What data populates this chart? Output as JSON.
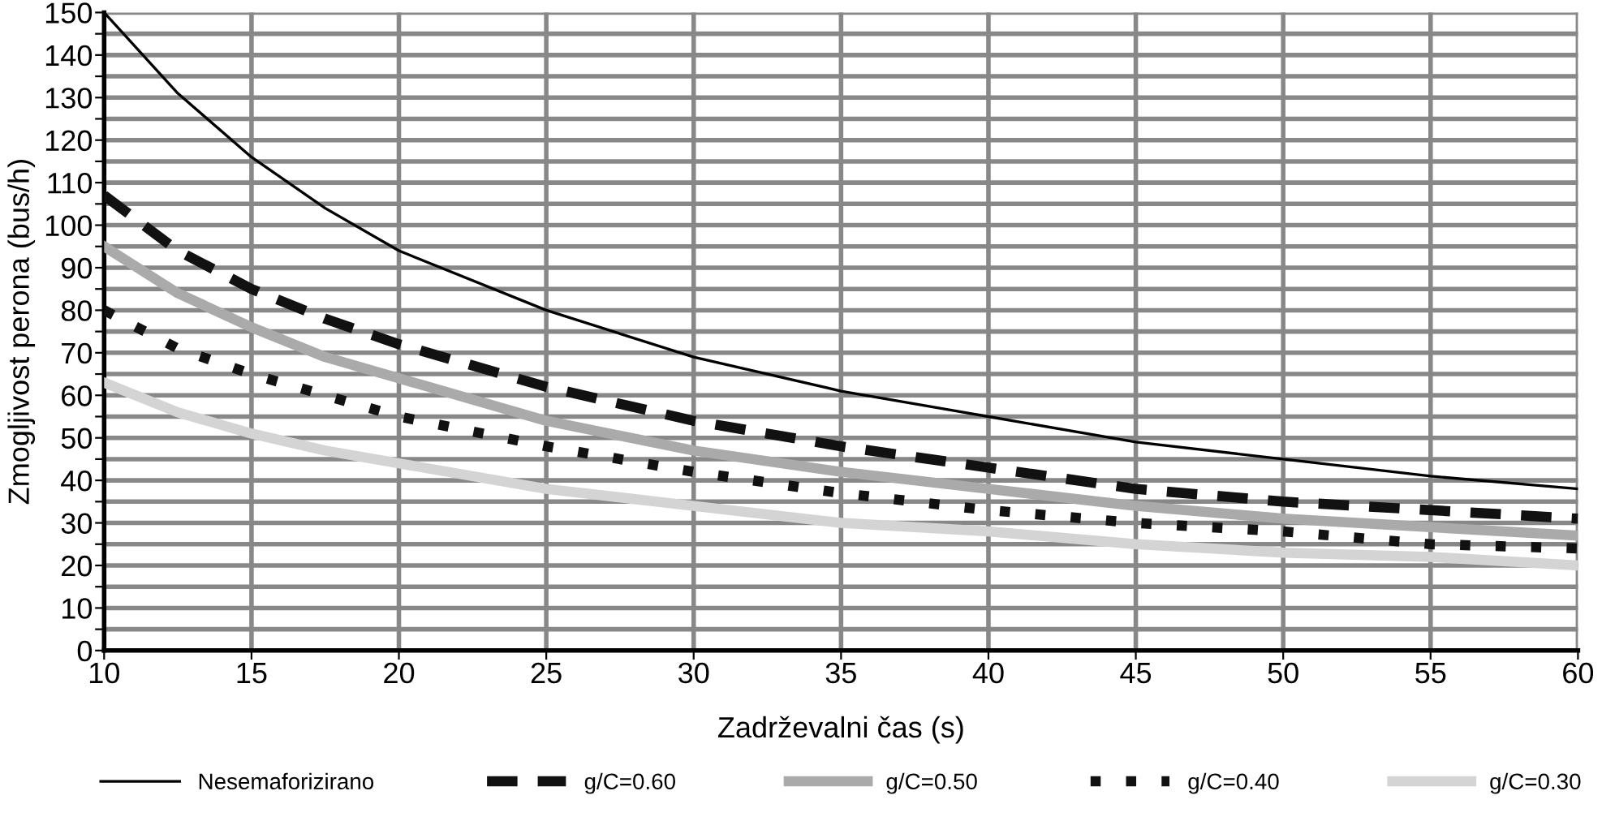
{
  "chart_data": {
    "type": "line",
    "xlabel": "Zadrževalni čas (s)",
    "ylabel": "Zmogljivost perona (bus/h)",
    "x": [
      10,
      12.5,
      15,
      17.5,
      20,
      25,
      30,
      35,
      40,
      45,
      50,
      55,
      60
    ],
    "series": [
      {
        "name": "Nesemaforizirano",
        "color": "#000000",
        "line_style": "solid",
        "values": [
          150,
          131,
          116,
          104,
          94,
          80,
          69,
          61,
          55,
          49,
          45,
          41,
          38
        ]
      },
      {
        "name": "g/C=0.60",
        "color": "#111111",
        "line_style": "dashed",
        "values": [
          107,
          94,
          85,
          78,
          72,
          62,
          54,
          48,
          43,
          38,
          35,
          33,
          31
        ]
      },
      {
        "name": "g/C=0.50",
        "color": "#aaaaaa",
        "line_style": "solid",
        "values": [
          95,
          84,
          76,
          69,
          64,
          54,
          47,
          42,
          38,
          34,
          31,
          29,
          27
        ]
      },
      {
        "name": "g/C=0.40",
        "color": "#111111",
        "line_style": "dotted",
        "values": [
          80,
          71,
          65,
          60,
          55,
          48,
          42,
          37,
          33,
          30,
          28,
          25,
          24
        ]
      },
      {
        "name": "g/C=0.30",
        "color": "#d4d4d4",
        "line_style": "solid",
        "values": [
          63,
          56,
          51,
          47,
          44,
          38,
          34,
          30,
          28,
          25,
          23,
          22,
          20
        ]
      }
    ],
    "xlim": [
      10,
      60
    ],
    "xticks": [
      10,
      15,
      20,
      25,
      30,
      35,
      40,
      45,
      50,
      55,
      60
    ],
    "ylim": [
      0,
      150
    ],
    "yticks": [
      0,
      {
        "value": 5,
        "label": null
      },
      10,
      {
        "value": 15,
        "label": null
      },
      20,
      {
        "value": 25,
        "label": null
      },
      30,
      {
        "value": 35,
        "label": null
      },
      40,
      {
        "value": 45,
        "label": null
      },
      50,
      {
        "value": 55,
        "label": null
      },
      60,
      {
        "value": 65,
        "label": null
      },
      70,
      {
        "value": 75,
        "label": null
      },
      80,
      {
        "value": 85,
        "label": null
      },
      90,
      {
        "value": 95,
        "label": null
      },
      100,
      {
        "value": 105,
        "label": null
      },
      110,
      {
        "value": 115,
        "label": null
      },
      120,
      {
        "value": 125,
        "label": null
      },
      130,
      {
        "value": 135,
        "label": null
      },
      140,
      {
        "value": 145,
        "label": null
      },
      150
    ],
    "grid": true,
    "legend": "bottom",
    "marker": "none"
  }
}
